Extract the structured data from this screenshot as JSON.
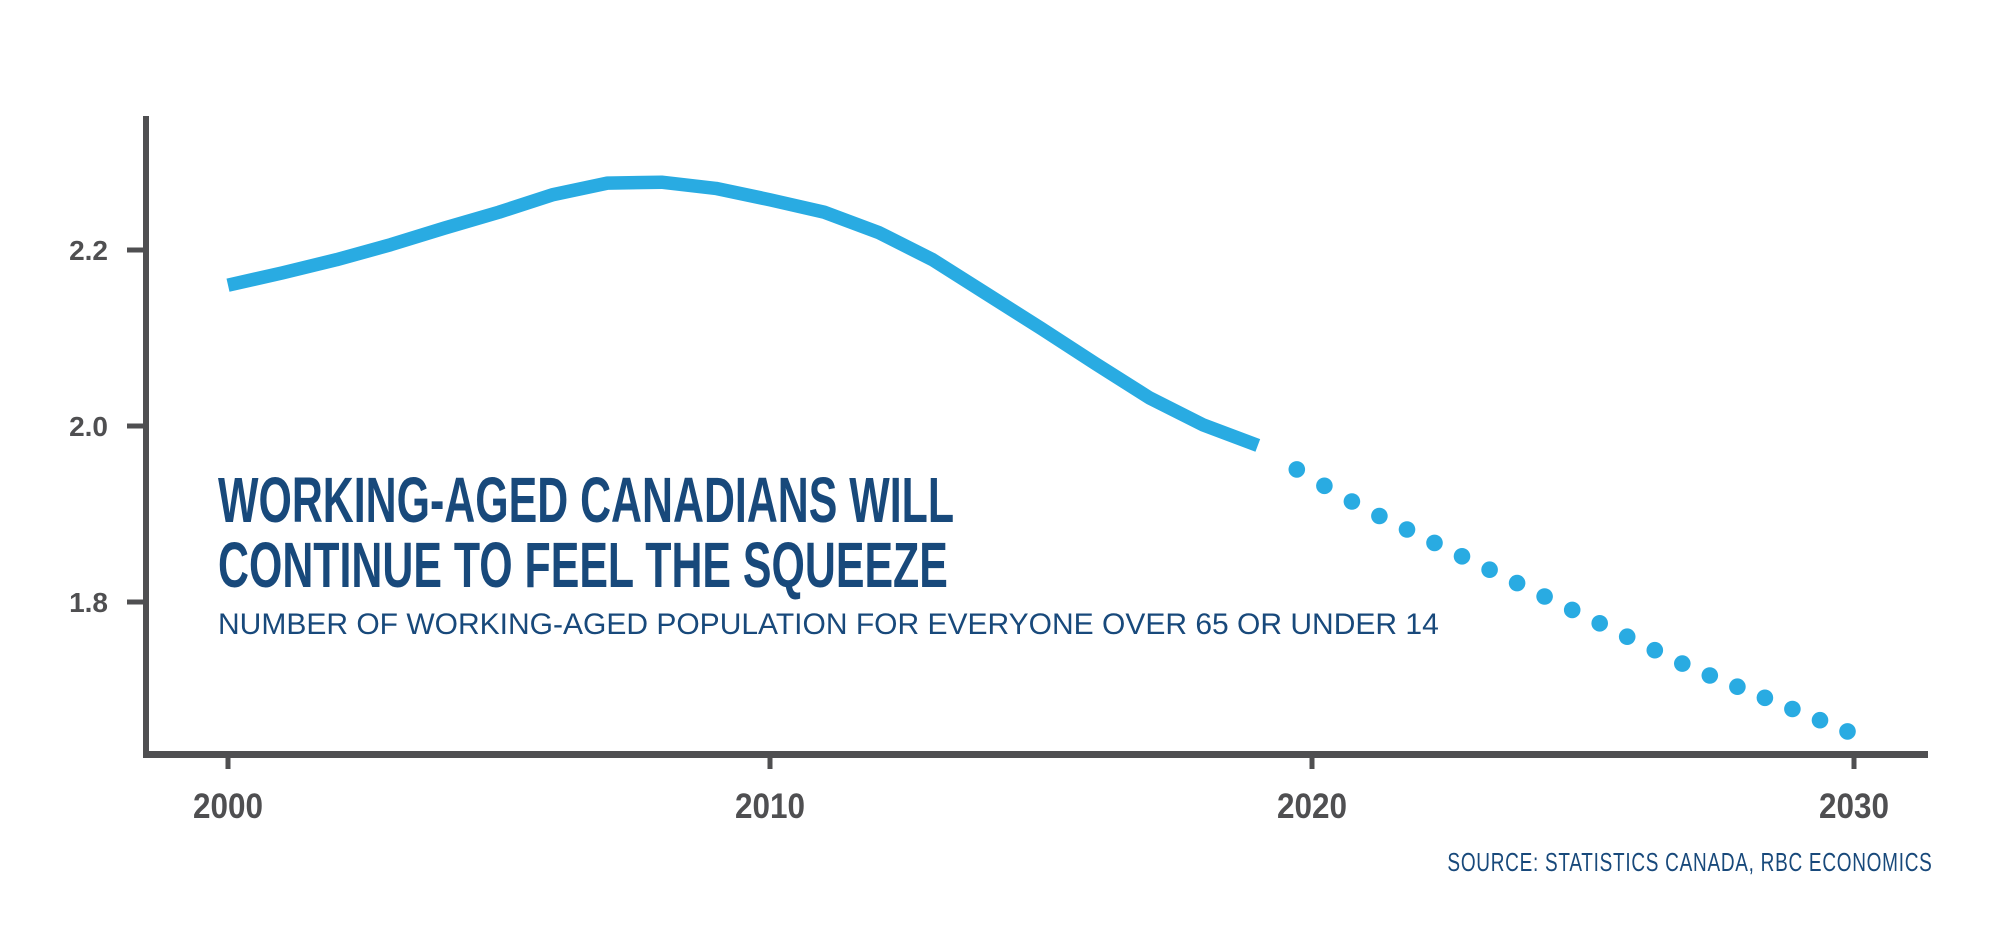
{
  "colors": {
    "line_blue": "#29ABE2",
    "navy": "#18497B",
    "axis_gray": "#4F4F51",
    "background": "#FFFFFF"
  },
  "header": {
    "title_line1": "WORKING-AGED CANADIANS WILL",
    "title_line2": "CONTINUE TO FEEL THE SQUEEZE",
    "subtitle": "NUMBER OF WORKING-AGED POPULATION FOR EVERYONE OVER 65 OR UNDER 14"
  },
  "footer": {
    "source": "SOURCE: STATISTICS CANADA, RBC ECONOMICS"
  },
  "chart_data": {
    "type": "line",
    "title": "WORKING-AGED CANADIANS WILL CONTINUE TO FEEL THE SQUEEZE",
    "subtitle": "NUMBER OF WORKING-AGED POPULATION FOR EVERYONE OVER 65 OR UNDER 14",
    "source": "SOURCE: STATISTICS CANADA, RBC ECONOMICS",
    "xlabel": "",
    "ylabel": "",
    "grid": false,
    "legend": "none",
    "x_tick_labels": [
      "2000",
      "2010",
      "2020",
      "2030"
    ],
    "x_tick_years": [
      2000,
      2010,
      2020,
      2030
    ],
    "y_tick_labels": [
      "2.2",
      "2.0",
      "1.8"
    ],
    "y_tick_values": [
      2.2,
      2.0,
      1.8
    ],
    "xlim": [
      1998.4,
      2031.4
    ],
    "ylim": [
      1.62,
      2.35
    ],
    "series": [
      {
        "name": "historical",
        "style": "solid",
        "x": [
          2000,
          2001,
          2002,
          2003,
          2004,
          2005,
          2006,
          2007,
          2008,
          2009,
          2010,
          2011,
          2012,
          2013,
          2014,
          2015,
          2016,
          2017,
          2018,
          2019
        ],
        "values": [
          2.16,
          2.174,
          2.189,
          2.206,
          2.225,
          2.243,
          2.263,
          2.276,
          2.277,
          2.27,
          2.257,
          2.243,
          2.22,
          2.189,
          2.15,
          2.111,
          2.071,
          2.032,
          2.001,
          1.978
        ]
      },
      {
        "name": "projection",
        "style": "dotted",
        "x": [
          2020,
          2021,
          2022,
          2023,
          2024,
          2025,
          2026,
          2027,
          2028,
          2029,
          2030
        ],
        "values": [
          1.94,
          1.905,
          1.875,
          1.845,
          1.815,
          1.785,
          1.755,
          1.725,
          1.7,
          1.675,
          1.65
        ]
      }
    ]
  }
}
